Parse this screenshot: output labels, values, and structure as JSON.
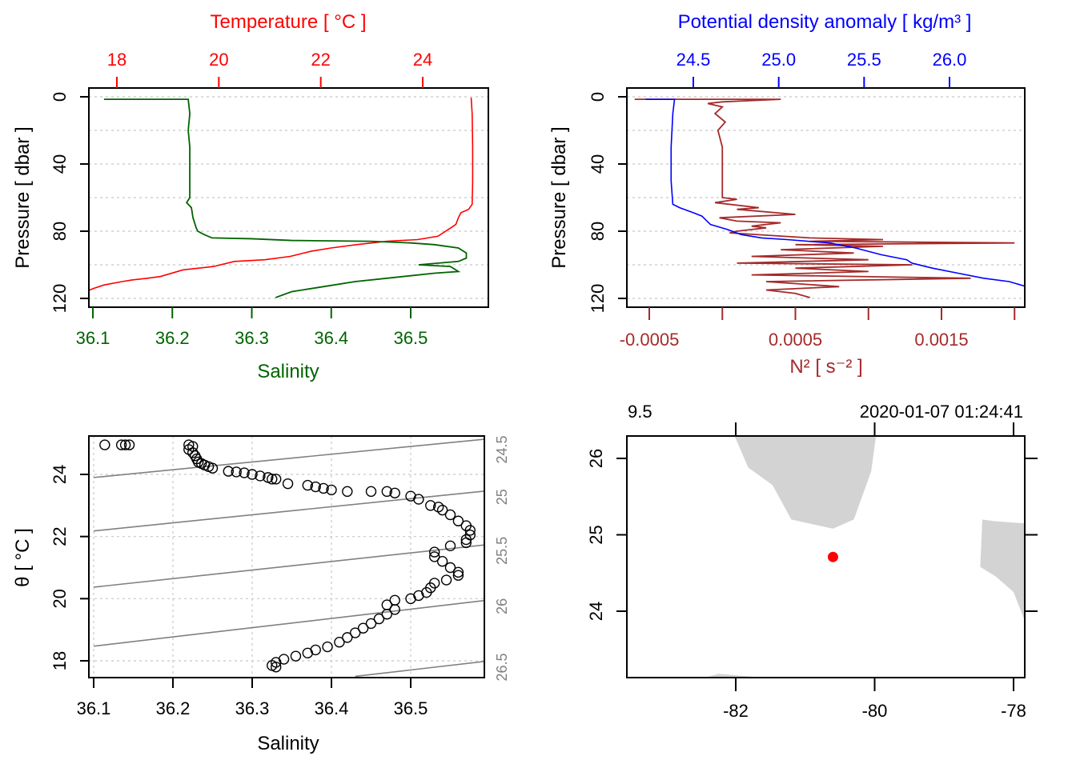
{
  "colors": {
    "temperature": "#ff0000",
    "salinity": "#006400",
    "density": "#0000ff",
    "n2": "#a52a2a",
    "grid": "#c8c8c8",
    "isopycnal": "#808080",
    "land": "#d3d3d3",
    "station": "#ff0000",
    "axis": "#000000"
  },
  "chart_data": [
    {
      "id": "ts-profile",
      "type": "line",
      "title": "",
      "ylabel": "Pressure [ dbar ]",
      "ylim": [
        120,
        0
      ],
      "yticks": [
        0,
        40,
        80,
        120
      ],
      "yticks_minor_grid": [
        0,
        20,
        40,
        60,
        80,
        100,
        120
      ],
      "bottom_axis": {
        "label": "Salinity",
        "ticks": [
          "36.1",
          "36.2",
          "36.3",
          "36.4",
          "36.5"
        ],
        "tick_values": [
          36.1,
          36.2,
          36.3,
          36.4,
          36.5
        ]
      },
      "top_axis": {
        "label": "Temperature [ °C ]",
        "ticks": [
          "18",
          "20",
          "22",
          "24"
        ],
        "tick_values": [
          18,
          20,
          22,
          24
        ]
      },
      "series": [
        {
          "name": "Temperature",
          "axis": "top",
          "points": [
            [
              24.95,
              0.5
            ],
            [
              24.97,
              10
            ],
            [
              24.98,
              30
            ],
            [
              24.98,
              50
            ],
            [
              24.97,
              64
            ],
            [
              24.9,
              67
            ],
            [
              24.75,
              69
            ],
            [
              24.7,
              72
            ],
            [
              24.65,
              76
            ],
            [
              24.55,
              78
            ],
            [
              24.45,
              80
            ],
            [
              24.3,
              83
            ],
            [
              23.9,
              85
            ],
            [
              23.3,
              86
            ],
            [
              22.7,
              88
            ],
            [
              22.2,
              90
            ],
            [
              21.8,
              92
            ],
            [
              21.4,
              95
            ],
            [
              20.9,
              97
            ],
            [
              20.3,
              98
            ],
            [
              19.9,
              101
            ],
            [
              19.3,
              103
            ],
            [
              18.85,
              107
            ],
            [
              18.6,
              108
            ],
            [
              18.3,
              109
            ],
            [
              18.1,
              110
            ],
            [
              17.75,
              112
            ],
            [
              17.55,
              114
            ],
            [
              17.3,
              117
            ],
            [
              17.0,
              119.5
            ]
          ]
        },
        {
          "name": "Salinity",
          "axis": "bottom",
          "points": [
            [
              36.114,
              1.5
            ],
            [
              36.22,
              1.5
            ],
            [
              36.222,
              10
            ],
            [
              36.22,
              20
            ],
            [
              36.222,
              30
            ],
            [
              36.222,
              40
            ],
            [
              36.222,
              50
            ],
            [
              36.222,
              60
            ],
            [
              36.218,
              63
            ],
            [
              36.224,
              66
            ],
            [
              36.226,
              72
            ],
            [
              36.23,
              78
            ],
            [
              36.232,
              80
            ],
            [
              36.24,
              82
            ],
            [
              36.25,
              84
            ],
            [
              36.3,
              84.5
            ],
            [
              36.35,
              85.5
            ],
            [
              36.45,
              86
            ],
            [
              36.5,
              87
            ],
            [
              36.53,
              88
            ],
            [
              36.56,
              90
            ],
            [
              36.57,
              93
            ],
            [
              36.57,
              96
            ],
            [
              36.56,
              98
            ],
            [
              36.51,
              100
            ],
            [
              36.55,
              101
            ],
            [
              36.56,
              104
            ],
            [
              36.53,
              105
            ],
            [
              36.47,
              108
            ],
            [
              36.43,
              110
            ],
            [
              36.39,
              113
            ],
            [
              36.35,
              116
            ],
            [
              36.33,
              119.5
            ]
          ]
        }
      ]
    },
    {
      "id": "density-n2-profile",
      "type": "line",
      "title": "",
      "ylabel": "Pressure [ dbar ]",
      "ylim": [
        120,
        0
      ],
      "yticks": [
        0,
        40,
        80,
        120
      ],
      "top_axis": {
        "label": "Potential density anomaly [ kg/m³ ]",
        "ticks": [
          "24.5",
          "25.0",
          "25.5",
          "26.0"
        ],
        "tick_values": [
          24.5,
          25.0,
          25.5,
          26.0
        ]
      },
      "bottom_axis": {
        "label": "N² [ s⁻² ]",
        "ticks": [
          "-0.0005",
          "0.0005",
          "0.0015"
        ],
        "tick_values": [
          -0.0005,
          0.0005,
          0.0015
        ],
        "unlabeled_ticks": [
          0,
          0.001,
          0.002
        ]
      },
      "series": [
        {
          "name": "Potential density anomaly",
          "axis": "top",
          "points": [
            [
              24.22,
              1.5
            ],
            [
              24.39,
              1.5
            ],
            [
              24.38,
              10
            ],
            [
              24.37,
              30
            ],
            [
              24.37,
              50
            ],
            [
              24.38,
              64
            ],
            [
              24.42,
              66
            ],
            [
              24.5,
              69
            ],
            [
              24.55,
              71
            ],
            [
              24.6,
              76
            ],
            [
              24.7,
              79
            ],
            [
              24.78,
              82
            ],
            [
              24.9,
              84
            ],
            [
              25.05,
              85
            ],
            [
              25.3,
              87
            ],
            [
              25.45,
              90
            ],
            [
              25.6,
              94
            ],
            [
              25.75,
              97
            ],
            [
              25.78,
              99
            ],
            [
              25.9,
              102
            ],
            [
              26.05,
              105
            ],
            [
              26.2,
              108
            ],
            [
              26.35,
              110
            ],
            [
              26.45,
              113
            ],
            [
              26.55,
              116
            ],
            [
              26.62,
              119.5
            ]
          ]
        },
        {
          "name": "N²",
          "axis": "bottom",
          "points": [
            [
              -0.0006,
              1.5
            ],
            [
              0.0004,
              1.5
            ],
            [
              0.0,
              3
            ],
            [
              -0.0001,
              4
            ],
            [
              0.0,
              6
            ],
            [
              -5e-05,
              10
            ],
            [
              2e-05,
              15
            ],
            [
              -3e-05,
              20
            ],
            [
              0.0,
              30
            ],
            [
              0.0,
              50
            ],
            [
              0.0,
              60
            ],
            [
              0.0001,
              61
            ],
            [
              -5e-05,
              63
            ],
            [
              0.00025,
              66
            ],
            [
              0.0001,
              67
            ],
            [
              0.0005,
              70
            ],
            [
              -2e-05,
              72
            ],
            [
              0.0001,
              74
            ],
            [
              0.0004,
              75
            ],
            [
              0.0002,
              77
            ],
            [
              0.0003,
              78
            ],
            [
              0.0001,
              80
            ],
            [
              5e-05,
              81
            ],
            [
              0.0006,
              84
            ],
            [
              0.0011,
              85
            ],
            [
              0.0006,
              86
            ],
            [
              0.002,
              87
            ],
            [
              0.0005,
              88
            ],
            [
              0.0011,
              89
            ],
            [
              0.0004,
              91
            ],
            [
              0.0009,
              93
            ],
            [
              0.0002,
              95
            ],
            [
              0.001,
              97
            ],
            [
              0.0001,
              99
            ],
            [
              0.0013,
              100
            ],
            [
              0.0005,
              102
            ],
            [
              0.001,
              104
            ],
            [
              0.0002,
              106
            ],
            [
              0.0017,
              108
            ],
            [
              0.0003,
              110
            ],
            [
              0.0008,
              113
            ],
            [
              0.0003,
              115
            ],
            [
              0.0005,
              117
            ],
            [
              0.0006,
              119.5
            ]
          ]
        }
      ]
    },
    {
      "id": "ts-diagram",
      "type": "scatter",
      "title": "",
      "xlabel": "Salinity",
      "ylabel": "θ [ °C ]",
      "xlim": [
        36.095,
        36.6
      ],
      "ylim": [
        17.5,
        25.2
      ],
      "xticks": [
        "36.1",
        "36.2",
        "36.3",
        "36.4",
        "36.5"
      ],
      "xtick_values": [
        36.1,
        36.2,
        36.3,
        36.4,
        36.5
      ],
      "yticks": [
        "18",
        "20",
        "22",
        "24"
      ],
      "ytick_values": [
        18,
        20,
        22,
        24
      ],
      "grid": true,
      "isopycnal_labels": [
        "24.5",
        "25",
        "25.5",
        "26",
        "26.5"
      ],
      "isopycnals": [
        {
          "label": "24.5",
          "left": [
            36.1,
            23.9
          ],
          "right": [
            36.6,
            25.15
          ]
        },
        {
          "label": "25",
          "left": [
            36.1,
            22.18
          ],
          "right": [
            36.6,
            23.48
          ]
        },
        {
          "label": "25.5",
          "left": [
            36.1,
            20.37
          ],
          "right": [
            36.6,
            21.75
          ]
        },
        {
          "label": "26",
          "left": [
            36.1,
            18.47
          ],
          "right": [
            36.6,
            19.96
          ]
        },
        {
          "label": "26.5",
          "left": [
            36.43,
            17.5
          ],
          "right": [
            36.6,
            18.0
          ]
        }
      ],
      "points": [
        [
          36.114,
          24.95
        ],
        [
          36.135,
          24.95
        ],
        [
          36.14,
          24.95
        ],
        [
          36.145,
          24.95
        ],
        [
          36.22,
          24.95
        ],
        [
          36.225,
          24.9
        ],
        [
          36.22,
          24.8
        ],
        [
          36.225,
          24.7
        ],
        [
          36.228,
          24.6
        ],
        [
          36.23,
          24.5
        ],
        [
          36.232,
          24.4
        ],
        [
          36.236,
          24.35
        ],
        [
          36.24,
          24.3
        ],
        [
          36.245,
          24.25
        ],
        [
          36.25,
          24.2
        ],
        [
          36.27,
          24.1
        ],
        [
          36.28,
          24.08
        ],
        [
          36.29,
          24.05
        ],
        [
          36.3,
          24.0
        ],
        [
          36.31,
          23.95
        ],
        [
          36.32,
          23.9
        ],
        [
          36.325,
          23.85
        ],
        [
          36.33,
          23.85
        ],
        [
          36.345,
          23.7
        ],
        [
          36.37,
          23.65
        ],
        [
          36.38,
          23.6
        ],
        [
          36.39,
          23.55
        ],
        [
          36.4,
          23.5
        ],
        [
          36.42,
          23.45
        ],
        [
          36.45,
          23.45
        ],
        [
          36.47,
          23.45
        ],
        [
          36.48,
          23.4
        ],
        [
          36.5,
          23.3
        ],
        [
          36.51,
          23.2
        ],
        [
          36.525,
          23.0
        ],
        [
          36.535,
          22.95
        ],
        [
          36.54,
          22.85
        ],
        [
          36.55,
          22.7
        ],
        [
          36.56,
          22.5
        ],
        [
          36.57,
          22.35
        ],
        [
          36.575,
          22.2
        ],
        [
          36.575,
          22.05
        ],
        [
          36.57,
          21.9
        ],
        [
          36.57,
          21.8
        ],
        [
          36.55,
          21.7
        ],
        [
          36.53,
          21.5
        ],
        [
          36.53,
          21.35
        ],
        [
          36.54,
          21.2
        ],
        [
          36.55,
          21.0
        ],
        [
          36.56,
          20.85
        ],
        [
          36.56,
          20.75
        ],
        [
          36.545,
          20.6
        ],
        [
          36.53,
          20.5
        ],
        [
          36.525,
          20.35
        ],
        [
          36.52,
          20.2
        ],
        [
          36.51,
          20.1
        ],
        [
          36.5,
          20.0
        ],
        [
          36.48,
          19.95
        ],
        [
          36.47,
          19.8
        ],
        [
          36.48,
          19.65
        ],
        [
          36.47,
          19.5
        ],
        [
          36.46,
          19.35
        ],
        [
          36.45,
          19.2
        ],
        [
          36.44,
          19.05
        ],
        [
          36.43,
          18.9
        ],
        [
          36.42,
          18.75
        ],
        [
          36.41,
          18.6
        ],
        [
          36.395,
          18.45
        ],
        [
          36.38,
          18.35
        ],
        [
          36.37,
          18.25
        ],
        [
          36.355,
          18.15
        ],
        [
          36.34,
          18.05
        ],
        [
          36.33,
          17.95
        ],
        [
          36.325,
          17.85
        ],
        [
          36.33,
          17.8
        ]
      ]
    },
    {
      "id": "station-map",
      "type": "scatter",
      "title": "",
      "top_labels": {
        "left": "9.5",
        "right": "2020-01-07 01:24:41"
      },
      "xlim": [
        -83.55,
        -77.85
      ],
      "ylim": [
        23.13,
        26.3
      ],
      "xticks": [
        "-82",
        "-80",
        "-78"
      ],
      "xtick_values": [
        -82,
        -80,
        -78
      ],
      "yticks": [
        "24",
        "25",
        "26"
      ],
      "ytick_values": [
        24,
        25,
        26
      ],
      "station": {
        "lon": -80.6,
        "lat": 24.71
      },
      "land": [
        [
          [
            -82.02,
            26.3
          ],
          [
            -81.82,
            25.88
          ],
          [
            -81.47,
            25.65
          ],
          [
            -81.2,
            25.2
          ],
          [
            -80.6,
            25.08
          ],
          [
            -80.3,
            25.2
          ],
          [
            -80.05,
            25.83
          ],
          [
            -79.98,
            26.3
          ]
        ],
        [
          [
            -78.45,
            25.2
          ],
          [
            -78.3,
            25.18
          ],
          [
            -77.85,
            25.15
          ],
          [
            -77.85,
            23.9
          ],
          [
            -78.0,
            24.25
          ],
          [
            -78.25,
            24.45
          ],
          [
            -78.48,
            24.58
          ]
        ],
        [
          [
            -82.45,
            23.13
          ],
          [
            -82.25,
            23.18
          ],
          [
            -81.6,
            23.13
          ]
        ]
      ]
    }
  ]
}
